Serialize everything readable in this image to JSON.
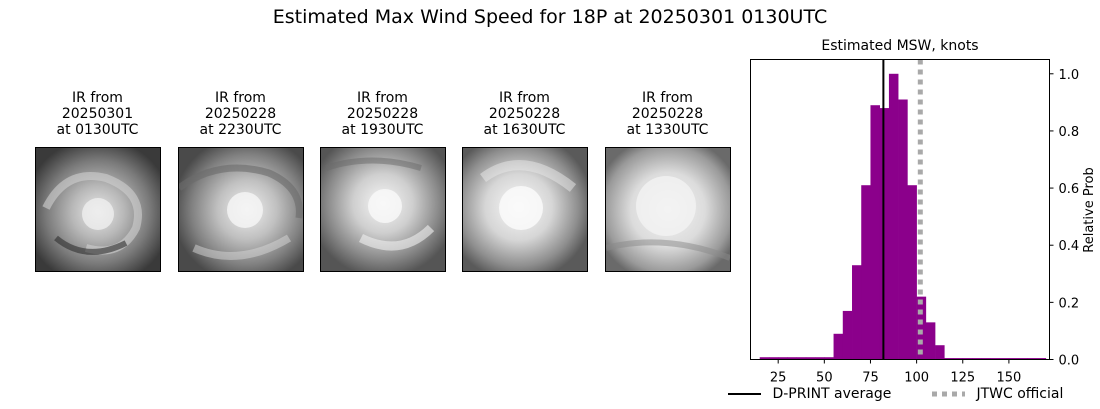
{
  "suptitle": "Estimated Max Wind Speed for 18P at 20250301 0130UTC",
  "ir_panels": [
    {
      "line1": "IR from",
      "line2": "20250301",
      "line3": "at 0130UTC"
    },
    {
      "line1": "IR from",
      "line2": "20250228",
      "line3": "at 2230UTC"
    },
    {
      "line1": "IR from",
      "line2": "20250228",
      "line3": "at 1930UTC"
    },
    {
      "line1": "IR from",
      "line2": "20250228",
      "line3": "at 1630UTC"
    },
    {
      "line1": "IR from",
      "line2": "20250228",
      "line3": "at 1330UTC"
    }
  ],
  "chart_data": {
    "type": "bar",
    "title": "Estimated MSW, knots",
    "xlabel": "",
    "ylabel": "Relative Prob",
    "xlim": [
      10,
      172
    ],
    "ylim": [
      0,
      1.05
    ],
    "xticks": [
      25,
      50,
      75,
      100,
      125,
      150
    ],
    "yticks": [
      0.0,
      0.2,
      0.4,
      0.6,
      0.8,
      1.0
    ],
    "bar_color": "#8b008b",
    "bin_width": 5,
    "bin_left_edges": [
      15,
      20,
      25,
      30,
      35,
      40,
      45,
      50,
      55,
      60,
      65,
      70,
      75,
      80,
      85,
      90,
      95,
      100,
      105,
      110,
      115,
      120,
      125,
      130,
      135,
      140,
      145,
      150,
      155,
      160,
      165
    ],
    "values": [
      0.008,
      0.008,
      0.008,
      0.008,
      0.008,
      0.008,
      0.008,
      0.008,
      0.09,
      0.17,
      0.33,
      0.61,
      0.89,
      0.88,
      1.0,
      0.91,
      0.61,
      0.22,
      0.13,
      0.05,
      0.005,
      0.005,
      0.005,
      0.005,
      0.005,
      0.005,
      0.005,
      0.005,
      0.005,
      0.005,
      0.005
    ],
    "lines": [
      {
        "name": "D-PRINT average",
        "x": 82,
        "color": "#000000",
        "style": "solid"
      },
      {
        "name": "JTWC official",
        "x": 102,
        "color": "#a9a9a9",
        "style": "dotted"
      }
    ],
    "legend_position": "bottom"
  },
  "legend": {
    "items": [
      {
        "label": "D-PRINT average",
        "color": "#000000",
        "style": "solid"
      },
      {
        "label": "JTWC official",
        "color": "#a9a9a9",
        "style": "dotted"
      }
    ]
  }
}
